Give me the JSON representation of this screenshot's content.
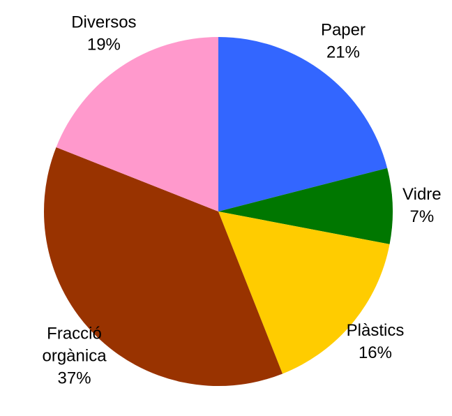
{
  "chart_data": {
    "type": "pie",
    "title": "",
    "slices": [
      {
        "name": "Paper",
        "label_lines": [
          "Paper"
        ],
        "percent_label": "21%",
        "value": 21,
        "color": "#3366ff"
      },
      {
        "name": "Vidre",
        "label_lines": [
          "Vidre"
        ],
        "percent_label": "7%",
        "value": 7,
        "color": "#007700"
      },
      {
        "name": "Plàstics",
        "label_lines": [
          "Plàstics"
        ],
        "percent_label": "16%",
        "value": 16,
        "color": "#ffcc00"
      },
      {
        "name": "Fracció orgànica",
        "label_lines": [
          "Fracció",
          "orgànica"
        ],
        "percent_label": "37%",
        "value": 37,
        "color": "#993300"
      },
      {
        "name": "Diversos",
        "label_lines": [
          "Diversos"
        ],
        "percent_label": "19%",
        "value": 19,
        "color": "#ff99cc"
      }
    ],
    "start_angle_deg": 0,
    "direction": "clockwise",
    "legend": "none"
  }
}
